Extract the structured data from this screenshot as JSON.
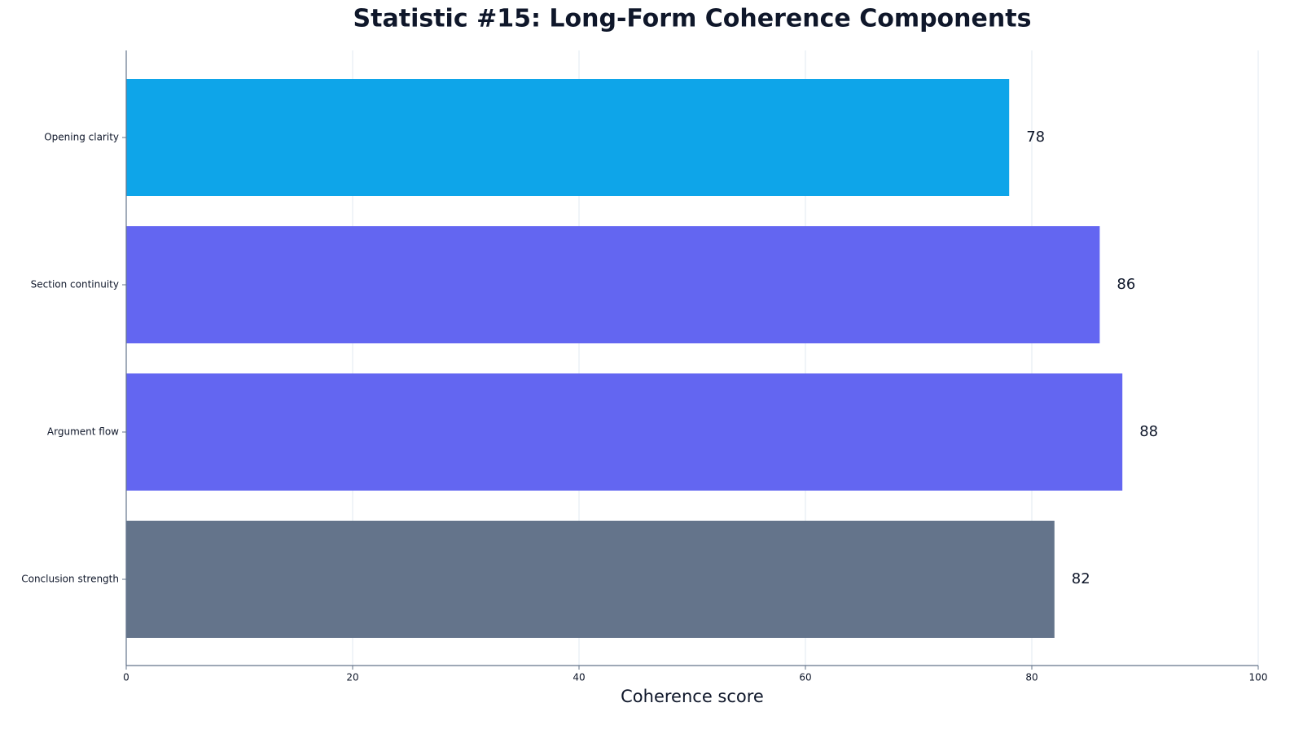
{
  "chart_data": {
    "type": "barh",
    "title": "Statistic #15: Long-Form Coherence Components",
    "categories": [
      "Opening clarity",
      "Section continuity",
      "Argument flow",
      "Conclusion strength"
    ],
    "values": [
      78,
      86,
      88,
      82
    ],
    "colors": [
      "#0ea5e9",
      "#6366f1",
      "#6366f1",
      "#64748b"
    ],
    "xlabel": "Coherence score",
    "xlim": [
      0,
      100
    ],
    "xticks": [
      0,
      20,
      40,
      60,
      80,
      100
    ],
    "grid": true
  }
}
